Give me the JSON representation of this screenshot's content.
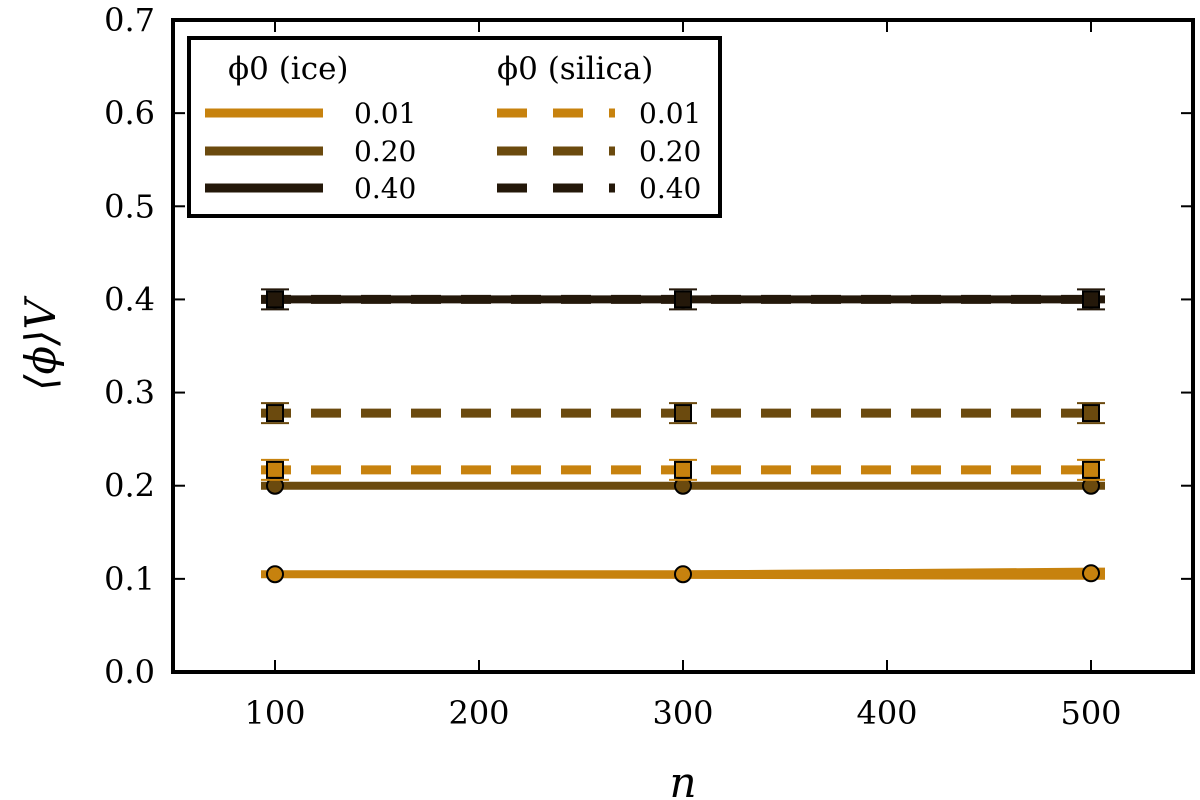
{
  "chart_data": {
    "type": "line",
    "xlabel": "n",
    "ylabel": "⟨ϕ⟩V",
    "xlim": [
      50,
      550
    ],
    "ylim": [
      0.0,
      0.7
    ],
    "xticks": [
      "100",
      "200",
      "300",
      "400",
      "500"
    ],
    "yticks": [
      "0.0",
      "0.1",
      "0.2",
      "0.3",
      "0.4",
      "0.5",
      "0.6",
      "0.7"
    ],
    "grid": false,
    "legend_placement": "top-left",
    "legend_titles": {
      "ice": "ϕ0 (ice)",
      "silica": "ϕ0 (silica)"
    },
    "x": [
      100,
      300,
      500
    ],
    "series": [
      {
        "group": "ice",
        "name": "0.01",
        "color": "#c7820e",
        "linestyle": "solid",
        "marker": "circle",
        "values": [
          0.105,
          0.105,
          0.106
        ],
        "lower": [
          0.101,
          0.1,
          0.099
        ],
        "upper": [
          0.109,
          0.109,
          0.112
        ]
      },
      {
        "group": "ice",
        "name": "0.20",
        "color": "#6b4a0e",
        "linestyle": "solid",
        "marker": "circle",
        "values": [
          0.2,
          0.2,
          0.2
        ],
        "lower": [
          0.196,
          0.196,
          0.196
        ],
        "upper": [
          0.204,
          0.204,
          0.204
        ]
      },
      {
        "group": "ice",
        "name": "0.40",
        "color": "#24180a",
        "linestyle": "solid",
        "marker": "circle",
        "values": [
          0.4,
          0.4,
          0.4
        ],
        "lower": [
          0.397,
          0.397,
          0.397
        ],
        "upper": [
          0.403,
          0.403,
          0.403
        ]
      },
      {
        "group": "silica",
        "name": "0.01",
        "color": "#c7820e",
        "linestyle": "dashed",
        "marker": "square",
        "values": [
          0.217,
          0.217,
          0.217
        ]
      },
      {
        "group": "silica",
        "name": "0.20",
        "color": "#6b4a0e",
        "linestyle": "dashed",
        "marker": "square",
        "values": [
          0.278,
          0.278,
          0.278
        ]
      },
      {
        "group": "silica",
        "name": "0.40",
        "color": "#24180a",
        "linestyle": "dashed",
        "marker": "square",
        "values": [
          0.4,
          0.4,
          0.4
        ]
      }
    ]
  }
}
